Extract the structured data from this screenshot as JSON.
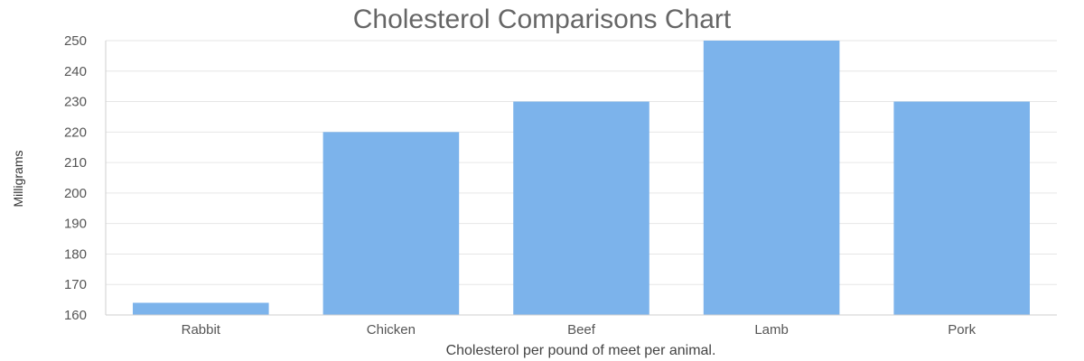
{
  "chart_data": {
    "type": "bar",
    "title": "Cholesterol Comparisons Chart",
    "xlabel": "Cholesterol per pound of meet per animal.",
    "ylabel": "Milligrams",
    "categories": [
      "Rabbit",
      "Chicken",
      "Beef",
      "Lamb",
      "Pork"
    ],
    "values": [
      164,
      220,
      230,
      250,
      230
    ],
    "ylim": [
      160,
      250
    ],
    "yticks": [
      160,
      170,
      180,
      190,
      200,
      210,
      220,
      230,
      240,
      250
    ],
    "grid": true,
    "legend": "none",
    "bar_color": "#7cb3eb"
  }
}
